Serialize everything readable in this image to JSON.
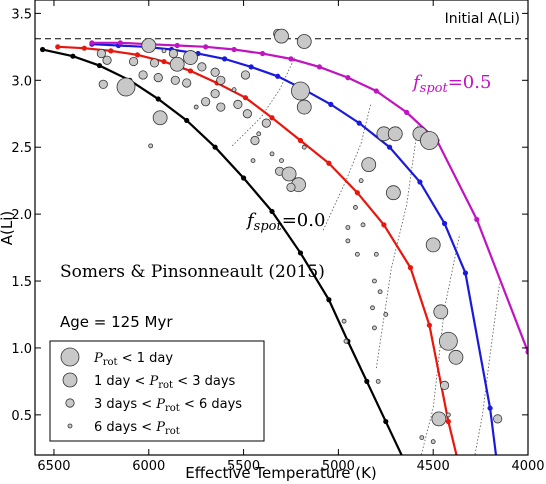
{
  "chart_data": {
    "type": "scatter",
    "xlabel": "Effective Temperature (K)",
    "ylabel": "A(Li)",
    "xlim": [
      6600,
      4000
    ],
    "ylim": [
      0.2,
      3.6
    ],
    "x_reversed": true,
    "x_ticks": [
      "6500",
      "6000",
      "5500",
      "5000",
      "4500",
      "4000"
    ],
    "y_ticks": [
      "0.5",
      "1.0",
      "1.5",
      "2.0",
      "2.5",
      "3.0",
      "3.5"
    ],
    "reference_line": {
      "label": "Initial A(Li)",
      "value": 3.31,
      "style": "dashed"
    },
    "annotations": {
      "citation": "Somers & Pinsonneault (2015)",
      "age": "Age = 125 Myr",
      "fspot_high": {
        "prefix": "f",
        "sub": "spot",
        "suffix": "=0.5"
      },
      "fspot_low": {
        "prefix": "f",
        "sub": "spot",
        "suffix": "=0.0"
      }
    },
    "series": [
      {
        "color": "#000000",
        "x": [
          6560,
          6400,
          6260,
          6100,
          5950,
          5800,
          5650,
          5500,
          5350,
          5200,
          5050,
          4950,
          4850,
          4750,
          4650,
          4580
        ],
        "y": [
          3.23,
          3.18,
          3.11,
          3.0,
          2.86,
          2.7,
          2.5,
          2.27,
          2.02,
          1.71,
          1.36,
          1.05,
          0.75,
          0.45,
          0.15,
          0.1
        ]
      },
      {
        "color": "#e8160c",
        "x": [
          6480,
          6340,
          6200,
          6060,
          5920,
          5780,
          5640,
          5490,
          5350,
          5200,
          5050,
          4900,
          4760,
          4620,
          4520,
          4420,
          4360
        ],
        "y": [
          3.25,
          3.24,
          3.22,
          3.19,
          3.14,
          3.07,
          2.98,
          2.87,
          2.72,
          2.55,
          2.38,
          2.16,
          1.92,
          1.6,
          1.17,
          0.45,
          0.1
        ]
      },
      {
        "color": "#1a1adc",
        "x": [
          6300,
          6160,
          6020,
          5880,
          5740,
          5600,
          5460,
          5320,
          5180,
          5040,
          4890,
          4730,
          4570,
          4440,
          4330,
          4200,
          4160
        ],
        "y": [
          3.27,
          3.26,
          3.25,
          3.23,
          3.2,
          3.16,
          3.1,
          3.03,
          2.93,
          2.82,
          2.68,
          2.5,
          2.24,
          1.93,
          1.56,
          0.55,
          0.1
        ]
      },
      {
        "color": "#c114c1",
        "x": [
          6300,
          6150,
          6000,
          5850,
          5700,
          5550,
          5400,
          5250,
          5100,
          4950,
          4800,
          4640,
          4480,
          4270,
          4000
        ],
        "y": [
          3.28,
          3.28,
          3.27,
          3.26,
          3.25,
          3.23,
          3.2,
          3.16,
          3.1,
          3.02,
          2.92,
          2.76,
          2.55,
          1.96,
          0.97
        ]
      }
    ],
    "connectors": [
      [
        [
          5560,
          2.51
        ],
        [
          5410,
          2.72
        ],
        [
          5310,
          2.93
        ],
        [
          5230,
          3.17
        ]
      ],
      [
        [
          5080,
          1.88
        ],
        [
          4960,
          2.25
        ],
        [
          4880,
          2.53
        ],
        [
          4830,
          2.82
        ]
      ],
      [
        [
          4800,
          0.85
        ],
        [
          4720,
          1.6
        ],
        [
          4640,
          2.07
        ],
        [
          4580,
          2.67
        ]
      ],
      [
        [
          4590,
          0.05
        ],
        [
          4500,
          0.55
        ],
        [
          4440,
          1.3
        ],
        [
          4360,
          1.85
        ]
      ],
      [
        [
          4300,
          0.05
        ],
        [
          4240,
          0.5
        ],
        [
          4200,
          0.95
        ],
        [
          4150,
          1.48
        ]
      ]
    ],
    "stars": [
      {
        "x": 5320,
        "y": 3.35,
        "size": "3-6d"
      },
      {
        "x": 5300,
        "y": 3.33,
        "size": "1-3d"
      },
      {
        "x": 5180,
        "y": 3.29,
        "size": "1-3d"
      },
      {
        "x": 6000,
        "y": 3.26,
        "size": "1-3d"
      },
      {
        "x": 5920,
        "y": 3.22,
        "size": "6d+"
      },
      {
        "x": 6250,
        "y": 3.2,
        "size": "3-6d"
      },
      {
        "x": 5870,
        "y": 3.2,
        "size": "3-6d"
      },
      {
        "x": 5780,
        "y": 3.17,
        "size": "1-3d"
      },
      {
        "x": 6220,
        "y": 3.15,
        "size": "3-6d"
      },
      {
        "x": 6080,
        "y": 3.14,
        "size": "3-6d"
      },
      {
        "x": 5970,
        "y": 3.13,
        "size": "3-6d"
      },
      {
        "x": 5850,
        "y": 3.12,
        "size": "1-3d"
      },
      {
        "x": 5720,
        "y": 3.1,
        "size": "3-6d"
      },
      {
        "x": 5650,
        "y": 3.06,
        "size": "3-6d"
      },
      {
        "x": 5490,
        "y": 3.04,
        "size": "3-6d"
      },
      {
        "x": 6030,
        "y": 3.04,
        "size": "3-6d"
      },
      {
        "x": 5950,
        "y": 3.02,
        "size": "3-6d"
      },
      {
        "x": 5860,
        "y": 3.0,
        "size": "3-6d"
      },
      {
        "x": 5620,
        "y": 3.0,
        "size": "3-6d"
      },
      {
        "x": 5800,
        "y": 2.98,
        "size": "3-6d"
      },
      {
        "x": 6240,
        "y": 2.97,
        "size": "3-6d"
      },
      {
        "x": 6120,
        "y": 2.95,
        "size": "1d"
      },
      {
        "x": 5550,
        "y": 2.93,
        "size": "6d+"
      },
      {
        "x": 5650,
        "y": 2.9,
        "size": "3-6d"
      },
      {
        "x": 5700,
        "y": 2.84,
        "size": "3-6d"
      },
      {
        "x": 5530,
        "y": 2.82,
        "size": "3-6d"
      },
      {
        "x": 5750,
        "y": 2.8,
        "size": "6d+"
      },
      {
        "x": 5620,
        "y": 2.8,
        "size": "3-6d"
      },
      {
        "x": 5480,
        "y": 2.75,
        "size": "3-6d"
      },
      {
        "x": 5200,
        "y": 2.92,
        "size": "1d"
      },
      {
        "x": 5180,
        "y": 2.8,
        "size": "1-3d"
      },
      {
        "x": 5940,
        "y": 2.72,
        "size": "1-3d"
      },
      {
        "x": 5380,
        "y": 2.68,
        "size": "3-6d"
      },
      {
        "x": 5420,
        "y": 2.6,
        "size": "6d+"
      },
      {
        "x": 5440,
        "y": 2.55,
        "size": "3-6d"
      },
      {
        "x": 5350,
        "y": 2.45,
        "size": "6d+"
      },
      {
        "x": 5300,
        "y": 2.4,
        "size": "6d+"
      },
      {
        "x": 5310,
        "y": 2.32,
        "size": "3-6d"
      },
      {
        "x": 5260,
        "y": 2.3,
        "size": "1-3d"
      },
      {
        "x": 5210,
        "y": 2.22,
        "size": "1-3d"
      },
      {
        "x": 5250,
        "y": 2.2,
        "size": "3-6d"
      },
      {
        "x": 5180,
        "y": 2.5,
        "size": "6d+"
      },
      {
        "x": 5990,
        "y": 2.51,
        "size": "6d+"
      },
      {
        "x": 5450,
        "y": 2.4,
        "size": "6d+"
      },
      {
        "x": 4760,
        "y": 2.6,
        "size": "1-3d"
      },
      {
        "x": 4700,
        "y": 2.6,
        "size": "1-3d"
      },
      {
        "x": 4570,
        "y": 2.6,
        "size": "1-3d"
      },
      {
        "x": 4520,
        "y": 2.55,
        "size": "1d"
      },
      {
        "x": 4840,
        "y": 2.37,
        "size": "1-3d"
      },
      {
        "x": 4710,
        "y": 2.16,
        "size": "1-3d"
      },
      {
        "x": 4880,
        "y": 2.25,
        "size": "6d+"
      },
      {
        "x": 4910,
        "y": 2.05,
        "size": "6d+"
      },
      {
        "x": 4950,
        "y": 1.9,
        "size": "6d+"
      },
      {
        "x": 4870,
        "y": 1.92,
        "size": "6d+"
      },
      {
        "x": 4950,
        "y": 1.8,
        "size": "6d+"
      },
      {
        "x": 4900,
        "y": 1.7,
        "size": "6d+"
      },
      {
        "x": 4800,
        "y": 1.7,
        "size": "6d+"
      },
      {
        "x": 4810,
        "y": 1.5,
        "size": "6d+"
      },
      {
        "x": 4780,
        "y": 1.42,
        "size": "6d+"
      },
      {
        "x": 4820,
        "y": 1.3,
        "size": "6d+"
      },
      {
        "x": 4750,
        "y": 1.25,
        "size": "6d+"
      },
      {
        "x": 4970,
        "y": 1.2,
        "size": "6d+"
      },
      {
        "x": 4810,
        "y": 1.15,
        "size": "6d+"
      },
      {
        "x": 4960,
        "y": 1.05,
        "size": "6d+"
      },
      {
        "x": 4790,
        "y": 0.75,
        "size": "6d+"
      },
      {
        "x": 4500,
        "y": 1.77,
        "size": "1-3d"
      },
      {
        "x": 4460,
        "y": 1.27,
        "size": "1-3d"
      },
      {
        "x": 4420,
        "y": 1.05,
        "size": "1d"
      },
      {
        "x": 4380,
        "y": 0.93,
        "size": "1-3d"
      },
      {
        "x": 4440,
        "y": 0.72,
        "size": "3-6d"
      },
      {
        "x": 4420,
        "y": 0.5,
        "size": "6d+"
      },
      {
        "x": 4470,
        "y": 0.47,
        "size": "1-3d"
      },
      {
        "x": 4160,
        "y": 0.47,
        "size": "3-6d"
      },
      {
        "x": 4560,
        "y": 0.33,
        "size": "6d+"
      },
      {
        "x": 4500,
        "y": 0.3,
        "size": "6d+"
      }
    ],
    "legend": {
      "placement": "bottom-left",
      "entries": [
        {
          "size": "1d",
          "label_pre": "",
          "label_sym": "P",
          "label_sub": "rot",
          "label_post": "< 1 day"
        },
        {
          "size": "1-3d",
          "label_pre": "1 day < ",
          "label_sym": "P",
          "label_sub": "rot",
          "label_post": "< 3 days"
        },
        {
          "size": "3-6d",
          "label_pre": "3 days < ",
          "label_sym": "P",
          "label_sub": "rot",
          "label_post": "< 6 days"
        },
        {
          "size": "6d+",
          "label_pre": "6 days < ",
          "label_sym": "P",
          "label_sub": "rot",
          "label_post": ""
        }
      ]
    },
    "marker_fill": "#c8c8c8"
  }
}
